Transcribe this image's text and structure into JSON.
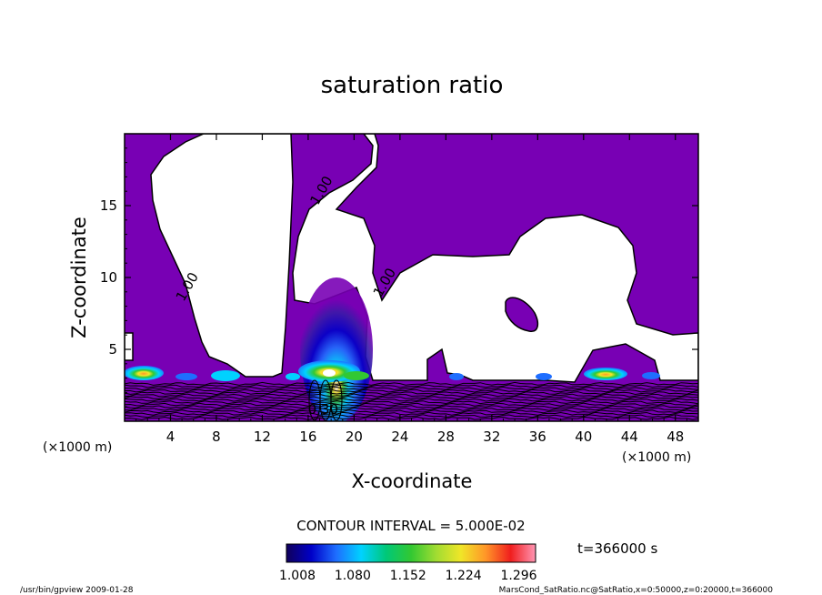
{
  "chart_data": {
    "type": "heatmap",
    "title": "saturation ratio",
    "xlabel": "X-coordinate",
    "ylabel": "Z-coordinate",
    "x_unit": "(×1000 m)",
    "x_unit_right": "(×1000 m)",
    "xlim": [
      0,
      50
    ],
    "ylim": [
      0,
      20
    ],
    "x_ticks": [
      4,
      8,
      12,
      16,
      20,
      24,
      28,
      32,
      36,
      40,
      44,
      48
    ],
    "y_ticks": [
      5,
      10,
      15
    ],
    "contour_interval_text": "CONTOUR INTERVAL = 5.000E-02",
    "contour_labels": [
      {
        "text": "1.00",
        "x": 17.5,
        "z": 15.9
      },
      {
        "text": "1.00",
        "x": 5.8,
        "z": 9.2
      },
      {
        "text": "1.00",
        "x": 23.0,
        "z": 9.5
      },
      {
        "text": "0.30",
        "x": 17.3,
        "z": 0.5
      }
    ],
    "colorbar": {
      "range": [
        1.008,
        1.332
      ],
      "tick_labels": [
        "1.008",
        "1.080",
        "1.152",
        "1.224",
        "1.296"
      ],
      "tick_values": [
        1.008,
        1.08,
        1.152,
        1.224,
        1.296
      ],
      "colors": [
        "#10005a",
        "#0000c8",
        "#1e6eff",
        "#00d2ff",
        "#00c878",
        "#32c832",
        "#a0dc32",
        "#f0e628",
        "#ff9628",
        "#f01e1e",
        "#ff96b4"
      ]
    },
    "time_label": "t=366000 s",
    "region_color": "#7800b4",
    "background_color": "#ffffff"
  },
  "footer": {
    "left": "/usr/bin/gpview   2009-01-28",
    "right": "MarsCond_SatRatio.nc@SatRatio,x=0:50000,z=0:20000,t=366000"
  }
}
